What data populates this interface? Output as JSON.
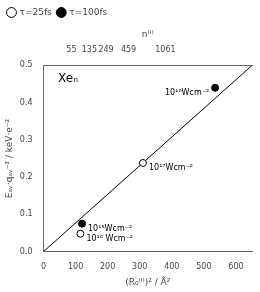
{
  "chart_data": {
    "type": "scatter",
    "x_label": "(R₀⁽ᴵ⁾)² / Å²",
    "x2_label": "n⁽ᴵ⁾",
    "y_label": "Eₐᵥ·qₐᵥ⁻² / keV·e⁻²",
    "xlim": [
      0,
      650
    ],
    "ylim": [
      0.0,
      0.5
    ],
    "xticks": [
      0,
      100,
      200,
      300,
      400,
      500,
      600
    ],
    "yticks": [
      {
        "value": 0.0,
        "label": "0.0"
      },
      {
        "value": 0.1,
        "label": "0.1"
      },
      {
        "value": 0.2,
        "label": "0.2"
      },
      {
        "value": 0.3,
        "label": "0.3"
      },
      {
        "value": 0.4,
        "label": "0.4"
      },
      {
        "value": 0.5,
        "label": "0.5"
      }
    ],
    "x2lim": [
      0,
      650
    ],
    "x2ticks": [
      {
        "value": 87,
        "label": "55"
      },
      {
        "value": 143,
        "label": "135"
      },
      {
        "value": 195,
        "label": "249"
      },
      {
        "value": 265,
        "label": "459"
      },
      {
        "value": 380,
        "label": "1061"
      }
    ],
    "series": [
      {
        "type": "line",
        "x": [
          0,
          650
        ],
        "values": [
          0.0,
          0.5
        ],
        "color": "#000000",
        "marker": "none",
        "line_style": "solid"
      },
      {
        "name": "τ=25fs",
        "x": [
          115,
          310
        ],
        "values": [
          0.048,
          0.238
        ],
        "color": "#000000",
        "marker": "open_circle",
        "point_labels": [
          "10¹⁶ Wcm⁻²",
          "10¹⁷Wcm⁻²"
        ]
      },
      {
        "name": "τ=100fs",
        "x": [
          120,
          535
        ],
        "values": [
          0.075,
          0.44
        ],
        "color": "#000000",
        "marker": "filled_circle",
        "point_labels": [
          "10¹⁵Wcm⁻²",
          "10¹⁶Wcm⁻²"
        ]
      }
    ],
    "annotations": [
      "Xeₙ"
    ],
    "legend": "upper left",
    "grid": false
  }
}
